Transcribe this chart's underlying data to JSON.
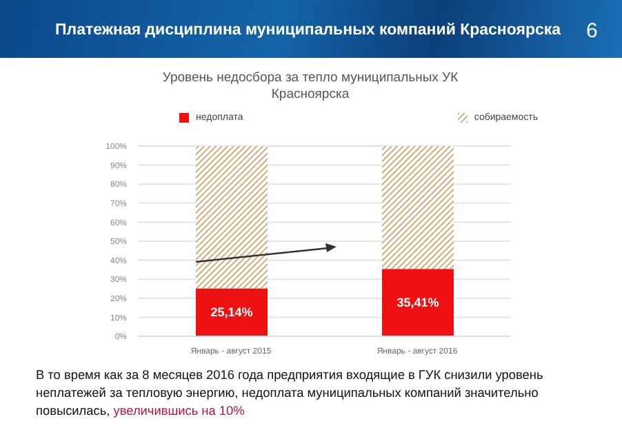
{
  "chart_data": {
    "type": "bar",
    "stacked": true,
    "title": "Уровень недосбора за тепло муниципальных УК Красноярска",
    "subtitle": "Платежная дисциплина муниципальных компаний Красноярска",
    "categories": [
      "Январь - август 2015",
      "Январь - август 2016"
    ],
    "series": [
      {
        "name": "недоплата",
        "color": "#ee1111",
        "values": [
          25.14,
          35.41
        ],
        "value_labels": [
          "25,14%",
          "35,41%"
        ]
      },
      {
        "name": "собираемость",
        "color": "#c8965a",
        "values": [
          74.86,
          64.59
        ]
      }
    ],
    "ylim": [
      0,
      100
    ],
    "yticks": [
      {
        "value": 0,
        "label": "0%"
      },
      {
        "value": 10,
        "label": "10%"
      },
      {
        "value": 20,
        "label": "20%"
      },
      {
        "value": 30,
        "label": "30%"
      },
      {
        "value": 40,
        "label": "40%"
      },
      {
        "value": 50,
        "label": "50%"
      },
      {
        "value": 60,
        "label": "60%"
      },
      {
        "value": 70,
        "label": "70%"
      },
      {
        "value": 80,
        "label": "80%"
      },
      {
        "value": 90,
        "label": "90%"
      },
      {
        "value": 100,
        "label": "100%"
      }
    ],
    "grid": "y",
    "legend": "top",
    "annotations": [
      "6",
      "В то время как за 8 месяцев 2016 года предприятия входящие в ГУК снизили уровень неплатежей за тепловую энергию, недоплата муниципальных компаний значительно повысилась,",
      "увеличившись на 10%"
    ]
  }
}
